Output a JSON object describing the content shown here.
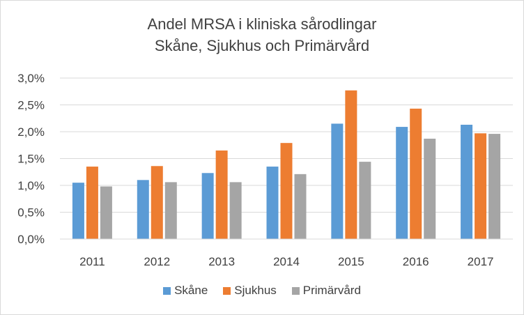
{
  "chart_data": {
    "type": "bar",
    "title_line1": "Andel MRSA i kliniska sårodlingar",
    "title_line2": "Skåne, Sjukhus och Primärvård",
    "categories": [
      "2011",
      "2012",
      "2013",
      "2014",
      "2015",
      "2016",
      "2017"
    ],
    "series": [
      {
        "name": "Skåne",
        "color": "#5b9bd5",
        "values": [
          1.05,
          1.1,
          1.23,
          1.35,
          2.15,
          2.09,
          2.13
        ]
      },
      {
        "name": "Sjukhus",
        "color": "#ed7d31",
        "values": [
          1.35,
          1.36,
          1.65,
          1.79,
          2.77,
          2.43,
          1.97
        ]
      },
      {
        "name": "Primärvård",
        "color": "#a5a5a5",
        "values": [
          0.98,
          1.06,
          1.06,
          1.21,
          1.44,
          1.87,
          1.96
        ]
      }
    ],
    "y_ticks": [
      "0,0%",
      "0,5%",
      "1,0%",
      "1,5%",
      "2,0%",
      "2,5%",
      "3,0%"
    ],
    "ylim": [
      0,
      3.0
    ],
    "grid": true,
    "legend_position": "bottom"
  }
}
